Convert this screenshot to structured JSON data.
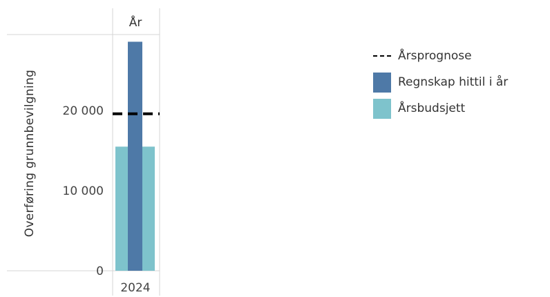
{
  "chart_data": {
    "type": "bar",
    "column_header": "År",
    "categories": [
      "2024"
    ],
    "ylabel": "Overføring grunnbevilgning",
    "ylim": [
      0,
      29500
    ],
    "yticks": [
      {
        "value": 0,
        "label": "0"
      },
      {
        "value": 10000,
        "label": "10 000"
      },
      {
        "value": 20000,
        "label": "20 000"
      }
    ],
    "series": [
      {
        "name": "Årsbudsjett",
        "values": [
          15500
        ],
        "color": "#7ec3cc"
      },
      {
        "name": "Regnskap hittil i år",
        "values": [
          28600
        ],
        "color": "#4e79a7"
      }
    ],
    "reference_lines": [
      {
        "name": "Årsprognose",
        "value": 19600,
        "style": "dashed",
        "color": "#000000"
      }
    ],
    "legend": {
      "placement": "right",
      "items": [
        {
          "label": "Årsprognose",
          "marker": "dash",
          "color": "#000000"
        },
        {
          "label": "Regnskap hittil i år",
          "marker": "box",
          "color": "#4e79a7"
        },
        {
          "label": "Årsbudsjett",
          "marker": "box",
          "color": "#7ec3cc"
        }
      ]
    }
  }
}
